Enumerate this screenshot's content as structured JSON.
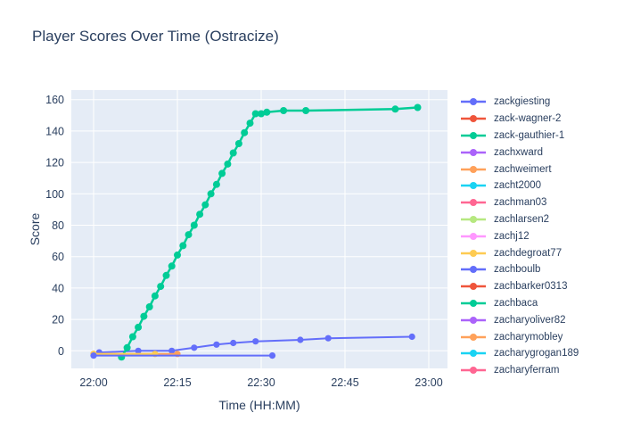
{
  "colors": {
    "text": "#2a3f5f",
    "plot_bg": "#e5ecf6",
    "grid": "#ffffff",
    "paper_bg": "#ffffff"
  },
  "chart_data": {
    "type": "line",
    "mode": "lines+markers",
    "title": "Player Scores Over Time (Ostracize)",
    "xlabel": "Time (HH:MM)",
    "ylabel": "Score",
    "x_tick_labels": [
      "22:00",
      "22:15",
      "22:30",
      "22:45",
      "23:00"
    ],
    "x_tick_minutes": [
      0,
      15,
      30,
      45,
      60
    ],
    "y_ticks": [
      0,
      20,
      40,
      60,
      80,
      100,
      120,
      140,
      160
    ],
    "x_axis_start_time": "22:00",
    "x_range_minutes": [
      -4,
      63.4
    ],
    "y_range": [
      -11.5,
      166
    ],
    "grid": true,
    "legend_position": "right",
    "series": [
      {
        "name": "zackgiesting",
        "color": "#636EFA",
        "points": [
          [
            1,
            -1
          ],
          [
            8,
            0
          ],
          [
            14,
            0
          ],
          [
            18,
            2
          ],
          [
            22,
            4
          ],
          [
            25,
            5
          ],
          [
            29,
            6
          ],
          [
            37,
            7
          ],
          [
            42,
            8
          ],
          [
            57,
            9
          ]
        ]
      },
      {
        "name": "zack-wagner-2",
        "color": "#EF553B",
        "points": [
          [
            0,
            -2
          ]
        ]
      },
      {
        "name": "zack-gauthier-1",
        "color": "#00CC96",
        "points": [
          [
            5,
            -4
          ],
          [
            6,
            2
          ],
          [
            7,
            9
          ],
          [
            8,
            15
          ],
          [
            9,
            22
          ],
          [
            10,
            28
          ],
          [
            11,
            35
          ],
          [
            12,
            41
          ],
          [
            13,
            48
          ],
          [
            14,
            54
          ],
          [
            15,
            61
          ],
          [
            16,
            67
          ],
          [
            17,
            74
          ],
          [
            18,
            80
          ],
          [
            19,
            87
          ],
          [
            20,
            93
          ],
          [
            21,
            100
          ],
          [
            22,
            106
          ],
          [
            23,
            113
          ],
          [
            24,
            119
          ],
          [
            25,
            126
          ],
          [
            26,
            132
          ],
          [
            27,
            139
          ],
          [
            28,
            145
          ],
          [
            29,
            151
          ],
          [
            30,
            151
          ],
          [
            31,
            152
          ],
          [
            34,
            153
          ],
          [
            38,
            153
          ],
          [
            54,
            154
          ],
          [
            58,
            155
          ]
        ]
      },
      {
        "name": "zachxward",
        "color": "#AB63FA",
        "points": []
      },
      {
        "name": "zachweimert",
        "color": "#FFA15A",
        "points": [
          [
            0,
            -2
          ],
          [
            15,
            -2
          ]
        ]
      },
      {
        "name": "zacht2000",
        "color": "#19D3F3",
        "points": []
      },
      {
        "name": "zachman03",
        "color": "#FF6692",
        "points": []
      },
      {
        "name": "zachlarsen2",
        "color": "#B6E880",
        "points": []
      },
      {
        "name": "zachj12",
        "color": "#FF97FF",
        "points": []
      },
      {
        "name": "zachdegroat77",
        "color": "#FECB52",
        "points": [
          [
            0,
            -2
          ],
          [
            11,
            -2
          ]
        ]
      },
      {
        "name": "zachboulb",
        "color": "#636EFA",
        "points": [
          [
            0,
            -3
          ],
          [
            32,
            -3
          ]
        ]
      },
      {
        "name": "zachbarker0313",
        "color": "#EF553B",
        "points": []
      },
      {
        "name": "zachbaca",
        "color": "#00CC96",
        "points": []
      },
      {
        "name": "zacharyoliver82",
        "color": "#AB63FA",
        "points": []
      },
      {
        "name": "zacharymobley",
        "color": "#FFA15A",
        "points": []
      },
      {
        "name": "zacharygrogan189",
        "color": "#19D3F3",
        "points": []
      },
      {
        "name": "zacharyferram",
        "color": "#FF6692",
        "points": []
      }
    ]
  }
}
